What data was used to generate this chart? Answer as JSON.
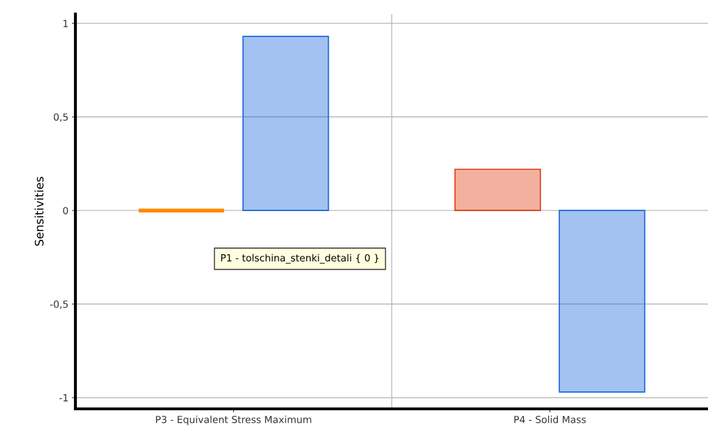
{
  "chart_data": {
    "type": "bar",
    "ylabel": "Sensitivities",
    "categories": [
      "P3 - Equivalent Stress Maximum",
      "P4 - Solid Mass"
    ],
    "series": [
      {
        "colors": [
          "#ff8a00",
          "#e03a10"
        ],
        "values": [
          0,
          0.22
        ]
      },
      {
        "color": "#1a66dd",
        "values": [
          0.93,
          -0.97
        ]
      }
    ],
    "ylim": [
      -1.06,
      1.05
    ],
    "yticks": [
      {
        "value": -1,
        "label": "-1"
      },
      {
        "value": -0.5,
        "label": "-0,5"
      },
      {
        "value": 0,
        "label": "0"
      },
      {
        "value": 0.5,
        "label": "0,5"
      },
      {
        "value": 1,
        "label": "1"
      }
    ],
    "grid": true,
    "annotations": [
      "P1 - tolschina_stenki_detali { 0 }"
    ]
  }
}
